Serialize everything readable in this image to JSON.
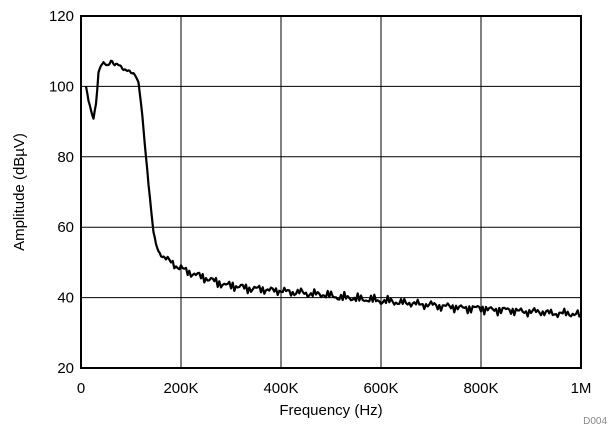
{
  "chart_data": {
    "type": "line",
    "xlabel": "Frequency (Hz)",
    "ylabel": "Amplitude (dBµV)",
    "xlim": [
      0,
      1000000
    ],
    "ylim": [
      20,
      120
    ],
    "grid": true,
    "x_ticks": [
      0,
      200000,
      400000,
      600000,
      800000,
      1000000
    ],
    "x_tick_labels": [
      "0",
      "200K",
      "400K",
      "600K",
      "800K",
      "1M"
    ],
    "y_ticks": [
      20,
      40,
      60,
      80,
      100,
      120
    ],
    "y_tick_labels": [
      "20",
      "40",
      "60",
      "80",
      "100",
      "120"
    ],
    "figure_code": "D004",
    "series": [
      {
        "color": "#000000",
        "x": [
          10000,
          15000,
          20000,
          25000,
          30000,
          35000,
          40000,
          45000,
          50000,
          55000,
          60000,
          65000,
          70000,
          75000,
          80000,
          85000,
          90000,
          95000,
          100000,
          105000,
          110000,
          115000,
          120000,
          125000,
          130000,
          135000,
          140000,
          145000,
          150000,
          155000,
          160000,
          165000,
          170000,
          180000,
          190000,
          200000,
          210000,
          220000,
          230000,
          240000,
          250000,
          260000,
          270000,
          280000,
          290000,
          300000,
          320000,
          340000,
          360000,
          380000,
          400000,
          420000,
          440000,
          460000,
          480000,
          500000,
          520000,
          540000,
          560000,
          580000,
          600000,
          620000,
          640000,
          660000,
          680000,
          700000,
          720000,
          740000,
          760000,
          780000,
          800000,
          820000,
          840000,
          860000,
          880000,
          900000,
          920000,
          940000,
          960000,
          980000,
          1000000
        ],
        "y": [
          100,
          96,
          93,
          91,
          95,
          104,
          106,
          106.5,
          106.5,
          106,
          107,
          106.5,
          106.5,
          106,
          105.5,
          105,
          104.5,
          104.5,
          104,
          103.5,
          103,
          101,
          95,
          88,
          80,
          72,
          65,
          59,
          55,
          53,
          52,
          51.5,
          51,
          50,
          49,
          48.5,
          47.5,
          47,
          46.5,
          46,
          45.5,
          45,
          44.5,
          44,
          43.5,
          43.5,
          43,
          42.5,
          42.5,
          42,
          42,
          41.5,
          41.5,
          41,
          41,
          40.5,
          40,
          40,
          39.5,
          39.5,
          39,
          39,
          38.5,
          38.5,
          38,
          38,
          37.5,
          37.5,
          37,
          37,
          37,
          36.5,
          36.5,
          36.5,
          36,
          36,
          36,
          35.5,
          35.5,
          35.5,
          35
        ]
      }
    ]
  }
}
